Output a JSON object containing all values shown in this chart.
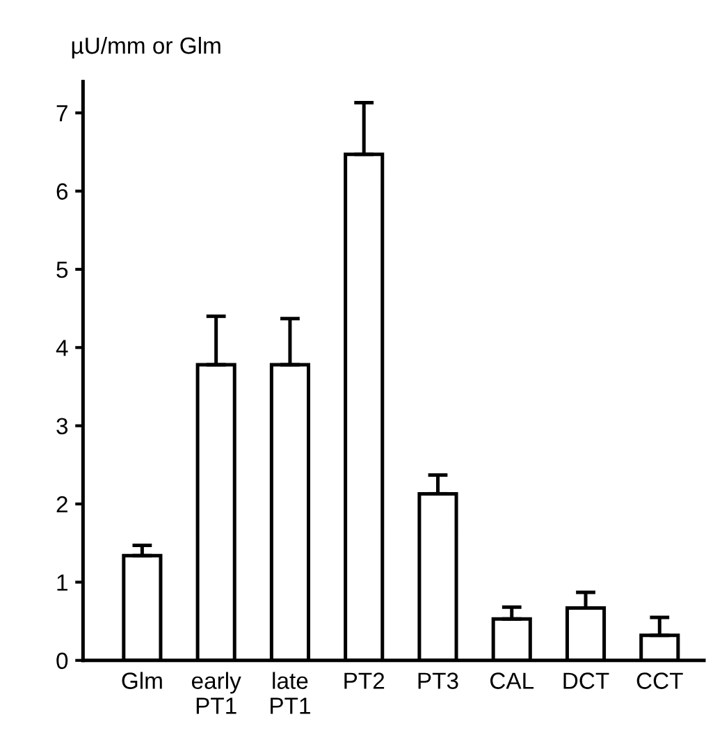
{
  "chart_data": {
    "type": "bar",
    "ylabel": "µU/mm or Glm",
    "categories": [
      "Glm",
      "early\nPT1",
      "late\nPT1",
      "PT2",
      "PT3",
      "CAL",
      "DCT",
      "CCT"
    ],
    "values": [
      1.34,
      3.78,
      3.78,
      6.47,
      2.13,
      0.53,
      0.67,
      0.32
    ],
    "errors": [
      [
        1.34,
        1.47
      ],
      [
        3.78,
        4.4
      ],
      [
        3.78,
        4.37
      ],
      [
        6.47,
        7.13
      ],
      [
        2.13,
        2.37
      ],
      [
        0.53,
        0.68
      ],
      [
        0.67,
        0.87
      ],
      [
        0.32,
        0.55
      ]
    ],
    "color": "#ffffff",
    "ylim": [
      0,
      7.4
    ],
    "yticks": [
      0,
      1,
      2,
      3,
      4,
      5,
      6,
      7
    ],
    "grid": false
  }
}
